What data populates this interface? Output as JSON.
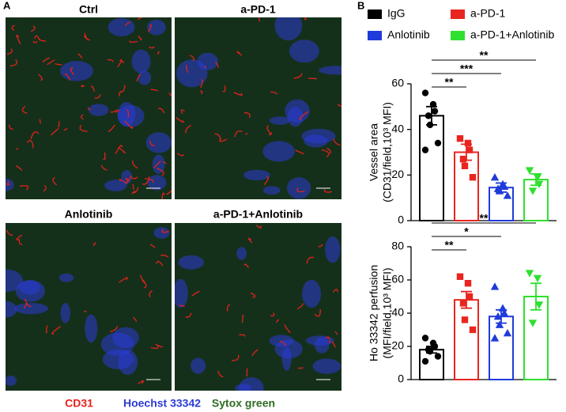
{
  "panel_a": {
    "label": "A",
    "images": [
      {
        "title": "Ctrl"
      },
      {
        "title": "a-PD-1"
      },
      {
        "title": "Anlotinib"
      },
      {
        "title": "a-PD-1+Anlotinib"
      }
    ],
    "stains": [
      {
        "name": "CD31",
        "color": "#e3211c"
      },
      {
        "name": "Hoechst 33342",
        "color": "#2b3ad6"
      },
      {
        "name": "Sytox green",
        "color": "#2e6b22"
      }
    ]
  },
  "panel_b_label": "B",
  "chart_data": [
    {
      "type": "bar",
      "ylabel": [
        "Vessel area",
        "(CD31/field,10³ MFI)"
      ],
      "ylim": [
        0,
        60
      ],
      "yticks": [
        0,
        20,
        40,
        60
      ],
      "series": [
        {
          "name": "IgG",
          "color": "#000000",
          "marker": "circle",
          "value": 46,
          "error": 4,
          "points": [
            56,
            51,
            48,
            46,
            42,
            34,
            31
          ]
        },
        {
          "name": "a-PD-1",
          "color": "#e8261f",
          "marker": "square",
          "value": 30,
          "error": 3.5,
          "points": [
            36,
            34,
            31,
            27,
            24,
            19
          ]
        },
        {
          "name": "Anlotinib",
          "color": "#1f3bdb",
          "marker": "triangle-up",
          "value": 14.5,
          "error": 2,
          "points": [
            19,
            16,
            15,
            14,
            13,
            11
          ]
        },
        {
          "name": "a-PD-1+Anlotinib",
          "color": "#2fe02f",
          "marker": "triangle-down",
          "value": 18,
          "error": 2.5,
          "points": [
            22,
            19,
            16,
            13
          ]
        }
      ],
      "significance": [
        {
          "label": "**",
          "pair": [
            0,
            3
          ]
        },
        {
          "label": "***",
          "pair": [
            0,
            2
          ]
        },
        {
          "label": "**",
          "pair": [
            0,
            1
          ]
        }
      ]
    },
    {
      "type": "bar",
      "ylabel": [
        "Ho 33342 perfusion",
        "(MFI/field,10³ MFI)"
      ],
      "ylim": [
        0,
        80
      ],
      "yticks": [
        0,
        20,
        40,
        60,
        80
      ],
      "series": [
        {
          "color": "#000000",
          "marker": "circle",
          "value": 18,
          "error": 2,
          "points": [
            25,
            22,
            20,
            18,
            17,
            14,
            11
          ]
        },
        {
          "color": "#e8261f",
          "marker": "square",
          "value": 48,
          "error": 5,
          "points": [
            62,
            58,
            50,
            46,
            36,
            30
          ]
        },
        {
          "color": "#1f3bdb",
          "marker": "triangle-up",
          "value": 38,
          "error": 4,
          "points": [
            56,
            43,
            40,
            38,
            33,
            28,
            25
          ]
        },
        {
          "color": "#2fe02f",
          "marker": "triangle-down",
          "value": 50,
          "error": 8,
          "points": [
            64,
            61,
            45,
            34
          ]
        }
      ],
      "significance": [
        {
          "label": "**",
          "pair": [
            0,
            3
          ]
        },
        {
          "label": "*",
          "pair": [
            0,
            2
          ]
        },
        {
          "label": "**",
          "pair": [
            0,
            1
          ]
        }
      ]
    }
  ]
}
